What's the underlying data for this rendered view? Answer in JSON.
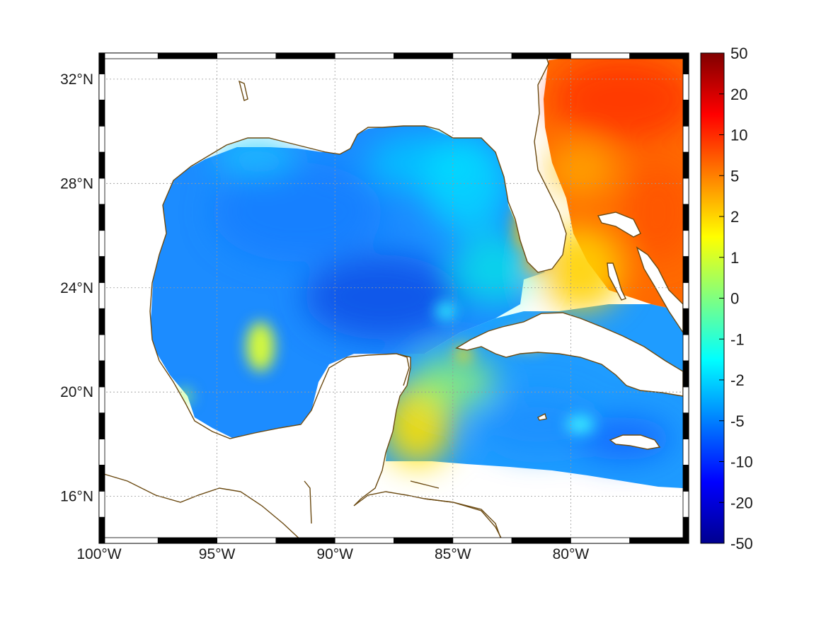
{
  "map": {
    "lon_range": [
      -100,
      -75
    ],
    "lat_range": [
      14.2,
      33
    ],
    "lon_ticks": [
      {
        "value": -100,
        "label": "100°W"
      },
      {
        "value": -95,
        "label": "95°W"
      },
      {
        "value": -90,
        "label": "90°W"
      },
      {
        "value": -85,
        "label": "85°W"
      },
      {
        "value": -80,
        "label": "80°W"
      }
    ],
    "lat_ticks": [
      {
        "value": 16,
        "label": "16°N"
      },
      {
        "value": 20,
        "label": "20°N"
      },
      {
        "value": 24,
        "label": "24°N"
      },
      {
        "value": 28,
        "label": "28°N"
      },
      {
        "value": 32,
        "label": "32°N"
      }
    ],
    "grid": true,
    "coastline_color": "#6b4a12",
    "land_color": "#ffffff",
    "colormap": "jet",
    "colorbar": {
      "placement": "right",
      "ticks": [
        {
          "value": 50,
          "label": "50"
        },
        {
          "value": 20,
          "label": "20"
        },
        {
          "value": 10,
          "label": "10"
        },
        {
          "value": 5,
          "label": "5"
        },
        {
          "value": 2,
          "label": "2"
        },
        {
          "value": 1,
          "label": "1"
        },
        {
          "value": 0,
          "label": "0"
        },
        {
          "value": -1,
          "label": "-1"
        },
        {
          "value": -2,
          "label": "-2"
        },
        {
          "value": -5,
          "label": "-5"
        },
        {
          "value": -10,
          "label": "-10"
        },
        {
          "value": -20,
          "label": "-20"
        },
        {
          "value": -50,
          "label": "-50"
        }
      ]
    }
  }
}
